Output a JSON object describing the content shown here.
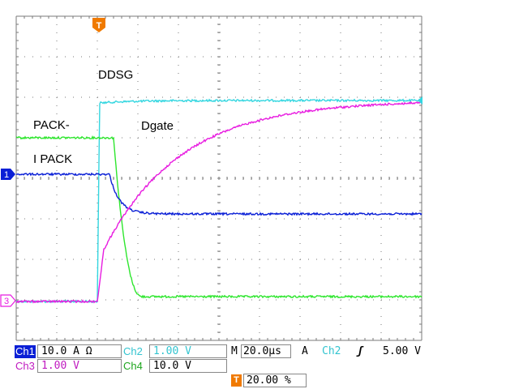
{
  "colors": {
    "ch1": "#0a1fd6",
    "ch2": "#33d6e0",
    "ch3": "#e81ce0",
    "ch4": "#2ee62e",
    "trigger": "#f07a00",
    "grid": "#7a7a7a"
  },
  "trace_labels": {
    "ddsg": "DDSG",
    "pack": "PACK-",
    "dgate": "Dgate",
    "ipack": "I PACK"
  },
  "markers": {
    "ch1_ground": "1",
    "ch3_ground": "3",
    "trigger": "T"
  },
  "readout": {
    "ch1": {
      "name": "Ch1",
      "scale": "10.0 A Ω"
    },
    "ch2": {
      "name": "Ch2",
      "scale": "1.00 V"
    },
    "ch3": {
      "name": "Ch3",
      "scale": "1.00 V"
    },
    "ch4": {
      "name": "Ch4",
      "scale": "10.0 V"
    },
    "timebase": {
      "prefix": "M",
      "value": "20.0µs"
    },
    "trigger": {
      "prefix": "A",
      "source": "Ch2",
      "slope_icon": "rising-edge-icon",
      "slope_glyph": "ʃ",
      "level": "5.00 V"
    },
    "trigger_position": {
      "icon": "T",
      "value": "20.00 %"
    }
  }
}
